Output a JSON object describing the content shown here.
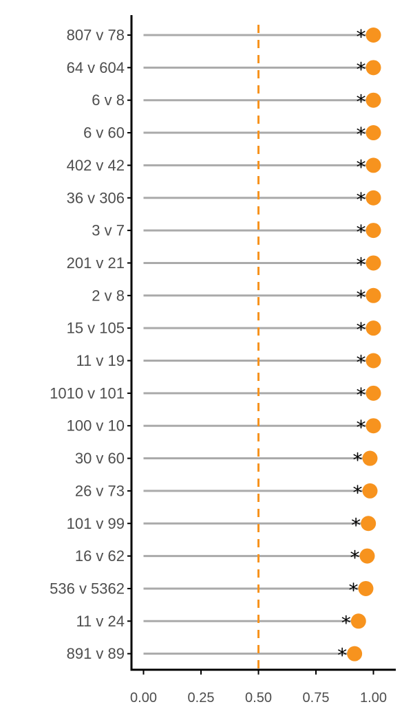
{
  "chart_data": {
    "type": "lollipop",
    "title": "",
    "xlabel": "",
    "ylabel": "",
    "xlim": [
      -0.05,
      1.1
    ],
    "x_ticks": [
      0,
      0.25,
      0.5,
      0.75,
      1
    ],
    "x_tick_labels": [
      "0.00",
      "0.25",
      "0.50",
      "0.75",
      "1.00"
    ],
    "reference_line": 0.5,
    "grid": false,
    "categories": [
      "807 v 78",
      "64 v 604",
      "6 v 8",
      "6 v 60",
      "402 v 42",
      "36 v 306",
      "3 v 7",
      "201 v 21",
      "2 v 8",
      "15 v 105",
      "11 v 19",
      "1010 v 101",
      "100 v 10",
      "30 v 60",
      "26 v 73",
      "101 v 99",
      "16 v 62",
      "536 v 5362",
      "11 v 24",
      "891 v 89"
    ],
    "values": [
      1.0,
      1.0,
      1.0,
      1.0,
      1.0,
      1.0,
      1.0,
      1.0,
      1.0,
      1.0,
      1.0,
      1.0,
      1.0,
      0.985,
      0.985,
      0.978,
      0.973,
      0.967,
      0.935,
      0.918
    ],
    "annotations": [
      "*",
      "*",
      "*",
      "*",
      "*",
      "*",
      "*",
      "*",
      "*",
      "*",
      "*",
      "*",
      "*",
      "*",
      "*",
      "*",
      "*",
      "*",
      "*",
      "*"
    ],
    "colors": {
      "point": "#f7931e",
      "stem": "#aaaaaa",
      "reference_line": "#f7931e",
      "axis": "#000000",
      "label": "#4d4d4d"
    }
  }
}
